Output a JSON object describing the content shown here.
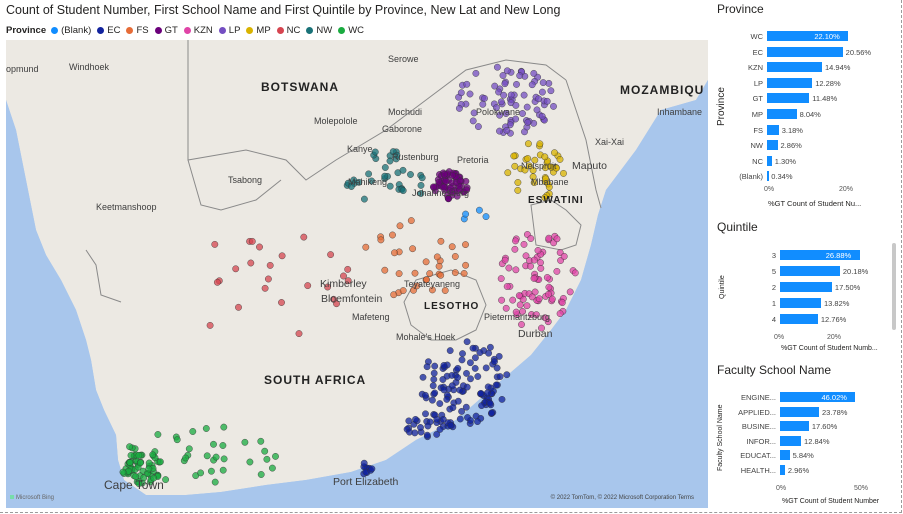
{
  "map_visual": {
    "title": "Count of Student Number, First School Name and First Quintile by Province, New Lat and New Long",
    "legend": {
      "title": "Province",
      "items": [
        {
          "label": "(Blank)",
          "color": "#118DFF"
        },
        {
          "label": "EC",
          "color": "#12239E"
        },
        {
          "label": "FS",
          "color": "#E66C37"
        },
        {
          "label": "GT",
          "color": "#6B007B"
        },
        {
          "label": "KZN",
          "color": "#E044A7"
        },
        {
          "label": "LP",
          "color": "#744EC2"
        },
        {
          "label": "MP",
          "color": "#D9B300"
        },
        {
          "label": "NC",
          "color": "#D64550"
        },
        {
          "label": "NW",
          "color": "#197278"
        },
        {
          "label": "WC",
          "color": "#1AAB40"
        }
      ]
    },
    "labels": {
      "botswana": "BOTSWANA",
      "mozambique": "MOZAMBIQU",
      "south_africa": "SOUTH AFRICA",
      "lesotho": "LESOTHO",
      "eswatini": "ESWATINI",
      "windhoek": "Windhoek",
      "opmund": "opmund",
      "keetmanshoop": "Keetmanshoop",
      "tsabong": "Tsabong",
      "serowe": "Serowe",
      "mochudi": "Mochudi",
      "molepolole": "Molepolole",
      "gaborone": "Gaborone",
      "kanye": "Kanye",
      "rustenburg": "Rustenburg",
      "pretoria": "Pretoria",
      "polokwane": "Polokwane",
      "mahikeng": "Mahikeng",
      "johannesburg": "Johannesburg",
      "nelspruit": "Nelspruit",
      "mbabane": "Mbabane",
      "maputo": "Maputo",
      "xai_xai": "Xai-Xai",
      "inhambane": "Inhambane",
      "kimberley": "Kimberley",
      "bloemfontein": "Bloemfontein",
      "teyateyaneng": "Teyateyaneng",
      "mafeteng": "Mafeteng",
      "maseru_hoek": "Mohale's Hoek",
      "pietermaritzburg": "Pietermaritzburg",
      "durban": "Durban",
      "cape_town": "Cape Town",
      "port_elizabeth": "Port Elizabeth"
    },
    "copyright": "© 2022 TomTom, © 2022 Microsoft Corporation  Terms",
    "bing": "Microsoft Bing",
    "colors": {
      "water": "#a8c6ec",
      "land": "#ece9e3",
      "border": "#8a8a8a"
    }
  },
  "province_chart": {
    "title": "Province",
    "y_axis_title": "Province",
    "x_axis_title": "%GT Count of Student Nu...",
    "ticks": [
      "0%",
      "20%"
    ],
    "bar_color": "#118DFF",
    "categories": [
      "WC",
      "EC",
      "KZN",
      "LP",
      "GT",
      "MP",
      "FS",
      "NW",
      "NC",
      "(Blank)"
    ],
    "value_labels": [
      "22.10%",
      "20.56%",
      "14.94%",
      "12.28%",
      "11.48%",
      "8.04%",
      "3.18%",
      "2.86%",
      "1.30%",
      "0.34%"
    ]
  },
  "quintile_chart": {
    "title": "Quintile",
    "y_axis_title": "Quintile",
    "x_axis_title": "%GT Count of Student Numb...",
    "ticks": [
      "0%",
      "20%"
    ],
    "categories": [
      "3",
      "5",
      "2",
      "1",
      "4"
    ],
    "value_labels": [
      "26.88%",
      "20.18%",
      "17.50%",
      "13.82%",
      "12.76%"
    ]
  },
  "faculty_chart": {
    "title": "Faculty School Name",
    "y_axis_title": "Faculty School Name",
    "x_axis_title": "%GT Count of Student Number",
    "ticks": [
      "0%",
      "50%"
    ],
    "categories": [
      "ENGINE...",
      "APPLIED...",
      "BUSINE...",
      "INFOR...",
      "EDUCAT...",
      "HEALTH..."
    ],
    "value_labels": [
      "46.02%",
      "23.78%",
      "17.60%",
      "12.84%",
      "5.84%",
      "2.96%"
    ]
  },
  "chart_data": [
    {
      "type": "bar",
      "title": "Province",
      "xlabel": "%GT Count of Student Nu...",
      "ylabel": "Province",
      "categories": [
        "WC",
        "EC",
        "KZN",
        "LP",
        "GT",
        "MP",
        "FS",
        "NW",
        "NC",
        "(Blank)"
      ],
      "values": [
        22.1,
        20.56,
        14.94,
        12.28,
        11.48,
        8.04,
        3.18,
        2.86,
        1.3,
        0.34
      ],
      "xlim": [
        0,
        25
      ],
      "grid": false
    },
    {
      "type": "bar",
      "title": "Quintile",
      "xlabel": "%GT Count of Student Numb...",
      "ylabel": "Quintile",
      "categories": [
        "3",
        "5",
        "2",
        "1",
        "4"
      ],
      "values": [
        26.88,
        20.18,
        17.5,
        13.82,
        12.76
      ],
      "xlim": [
        0,
        30
      ],
      "grid": false
    },
    {
      "type": "bar",
      "title": "Faculty School Name",
      "xlabel": "%GT Count of Student Number",
      "ylabel": "Faculty School Name",
      "categories": [
        "ENGINE...",
        "APPLIED...",
        "BUSINE...",
        "INFOR...",
        "EDUCAT...",
        "HEALTH..."
      ],
      "values": [
        46.02,
        23.78,
        17.6,
        12.84,
        5.84,
        2.96
      ],
      "xlim": [
        0,
        50
      ],
      "grid": false
    }
  ]
}
